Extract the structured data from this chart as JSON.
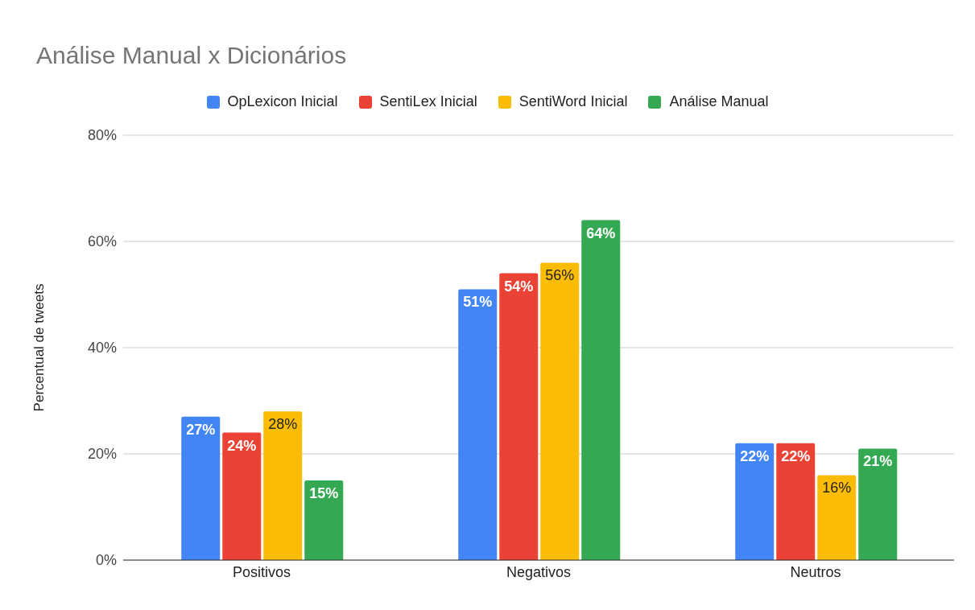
{
  "chart_data": {
    "type": "bar",
    "title": "Análise Manual x Dicionários",
    "ylabel": "Percentual de tweets",
    "categories": [
      "Positivos",
      "Negativos",
      "Neutros"
    ],
    "series": [
      {
        "name": "OpLexicon Inicial",
        "color": "#4285f4",
        "values": [
          27,
          51,
          22
        ],
        "value_labels": [
          "27%",
          "51%",
          "22%"
        ]
      },
      {
        "name": "SentiLex Inicial",
        "color": "#ea4335",
        "values": [
          24,
          54,
          22
        ],
        "value_labels": [
          "24%",
          "54%",
          "22%"
        ]
      },
      {
        "name": "SentiWord Inicial",
        "color": "#fbbc04",
        "values": [
          28,
          56,
          16
        ],
        "value_labels": [
          "28%",
          "56%",
          "16%"
        ]
      },
      {
        "name": "Análise Manual",
        "color": "#34a853",
        "values": [
          15,
          64,
          21
        ],
        "value_labels": [
          "15%",
          "64%",
          "21%"
        ]
      }
    ],
    "ylim": [
      0,
      80
    ],
    "yticks": [
      {
        "value": 0,
        "label": "0%"
      },
      {
        "value": 20,
        "label": "20%"
      },
      {
        "value": 40,
        "label": "40%"
      },
      {
        "value": 60,
        "label": "60%"
      },
      {
        "value": 80,
        "label": "80%"
      }
    ],
    "grid": "y",
    "legend": "top"
  }
}
